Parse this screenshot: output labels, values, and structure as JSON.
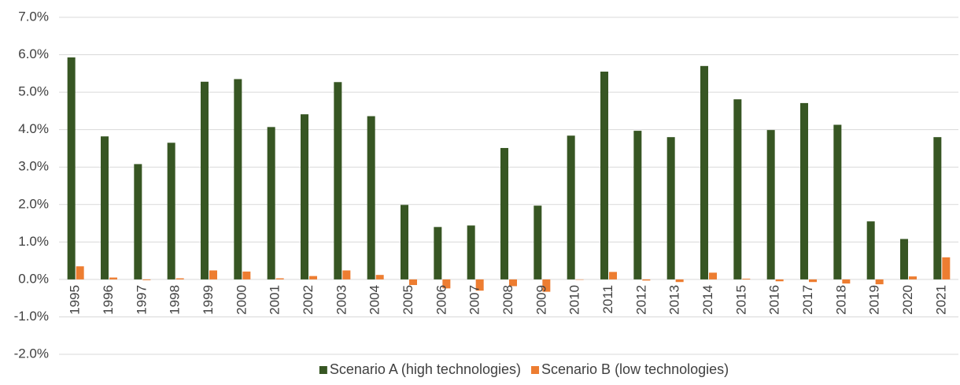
{
  "chart_data": {
    "type": "bar",
    "categories": [
      "1995",
      "1996",
      "1997",
      "1998",
      "1999",
      "2000",
      "2001",
      "2002",
      "2003",
      "2004",
      "2005",
      "2006",
      "2007",
      "2008",
      "2009",
      "2010",
      "2011",
      "2012",
      "2013",
      "2014",
      "2015",
      "2016",
      "2017",
      "2018",
      "2019",
      "2020",
      "2021"
    ],
    "series": [
      {
        "name": "Scenario A (high technologies)",
        "color": "#375623",
        "values": [
          5.93,
          3.82,
          3.08,
          3.65,
          5.28,
          5.35,
          4.07,
          4.41,
          5.27,
          4.36,
          1.99,
          1.4,
          1.44,
          3.51,
          1.97,
          3.84,
          5.55,
          3.97,
          3.8,
          5.7,
          4.81,
          3.99,
          4.71,
          4.13,
          1.55,
          1.08,
          3.8
        ]
      },
      {
        "name": "Scenario B (low technologies)",
        "color": "#ed7d31",
        "values": [
          0.35,
          0.05,
          -0.02,
          0.03,
          0.24,
          0.21,
          0.03,
          0.09,
          0.24,
          0.12,
          -0.15,
          -0.24,
          -0.3,
          -0.18,
          -0.33,
          0.0,
          0.2,
          -0.03,
          -0.07,
          0.18,
          0.02,
          -0.05,
          -0.07,
          -0.11,
          -0.13,
          0.08,
          0.59
        ]
      }
    ],
    "ylim": [
      -2,
      7
    ],
    "yticks": [
      {
        "value": -2,
        "label": "-2.0%"
      },
      {
        "value": -1,
        "label": "-1.0%"
      },
      {
        "value": 0,
        "label": "0.0%"
      },
      {
        "value": 1,
        "label": "1.0%"
      },
      {
        "value": 2,
        "label": "2.0%"
      },
      {
        "value": 3,
        "label": "3.0%"
      },
      {
        "value": 4,
        "label": "4.0%"
      },
      {
        "value": 5,
        "label": "5.0%"
      },
      {
        "value": 6,
        "label": "6.0%"
      },
      {
        "value": 7,
        "label": "7.0%"
      }
    ],
    "grid": true,
    "legend": "bottom"
  }
}
